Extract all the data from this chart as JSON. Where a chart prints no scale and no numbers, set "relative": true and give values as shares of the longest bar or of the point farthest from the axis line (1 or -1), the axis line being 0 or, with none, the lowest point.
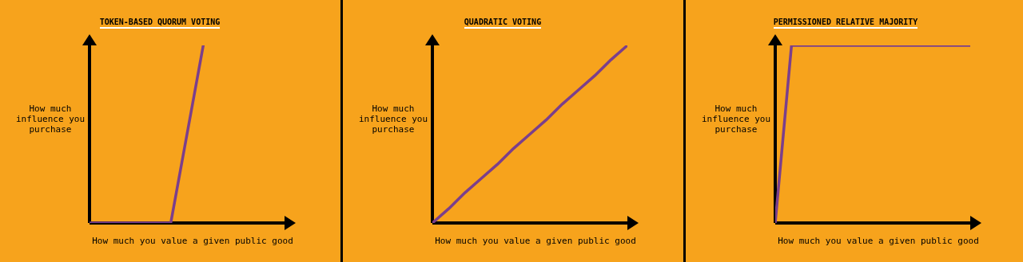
{
  "chart_data": [
    {
      "type": "line",
      "title": "TOKEN-BASED QUORUM VOTING",
      "xlabel": "How much you value a given public good",
      "ylabel": "How much influence you purchase",
      "relative": true,
      "categories": [
        null,
        null,
        null,
        null,
        null,
        null,
        null,
        null,
        null,
        null,
        null,
        null,
        null
      ],
      "series": [
        {
          "color": "#7b3f8c",
          "values": [
            0,
            0,
            0,
            0,
            0,
            0,
            0.5,
            1,
            null,
            null,
            null,
            null,
            null
          ]
        }
      ]
    },
    {
      "type": "line",
      "title": "QUADRATIC VOTING",
      "xlabel": "How much you value a given public good",
      "ylabel": "How much influence you purchase",
      "relative": true,
      "categories": [
        null,
        null,
        null,
        null,
        null,
        null,
        null,
        null,
        null,
        null,
        null,
        null,
        null
      ],
      "series": [
        {
          "color": "#7b3f8c",
          "values": [
            0,
            0.08,
            0.17,
            0.25,
            0.33,
            0.42,
            0.5,
            0.58,
            0.67,
            0.75,
            0.83,
            0.92,
            1
          ]
        }
      ]
    },
    {
      "type": "line",
      "title": "PERMISSIONED RELATIVE MAJORITY",
      "xlabel": "How much you value a given public good",
      "ylabel": "How much influence you purchase",
      "relative": true,
      "categories": [
        null,
        null,
        null,
        null,
        null,
        null,
        null,
        null,
        null,
        null,
        null,
        null,
        null
      ],
      "series": [
        {
          "color": "#7b3f8c",
          "values": [
            0,
            1,
            1,
            1,
            1,
            1,
            1,
            1,
            1,
            1,
            1,
            1,
            1
          ]
        }
      ]
    }
  ]
}
